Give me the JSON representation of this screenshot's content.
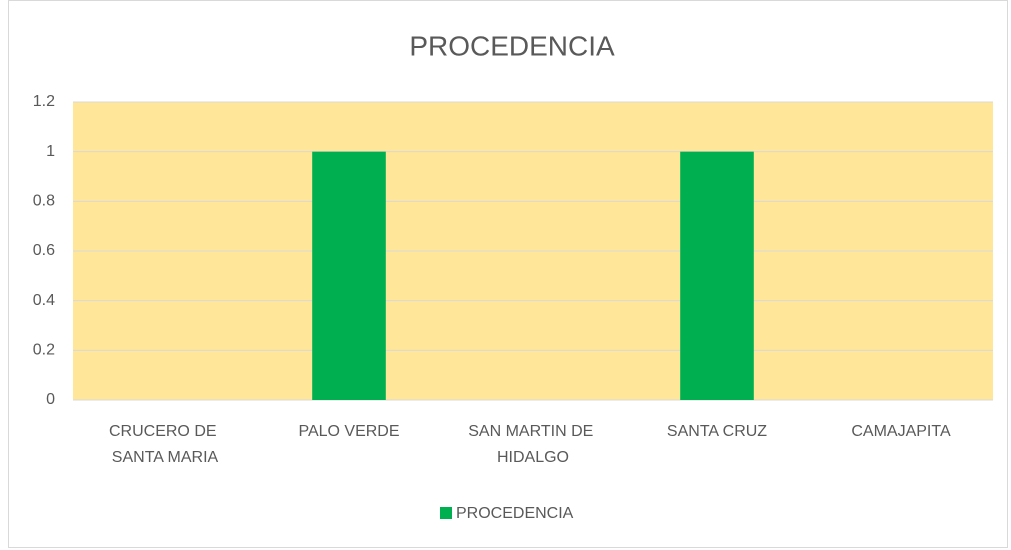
{
  "chart_data": {
    "type": "bar",
    "title": "PROCEDENCIA",
    "categories": [
      "CRUCERO DE SANTA MARIA",
      "PALO VERDE",
      "SAN MARTIN DE HIDALGO",
      "SANTA CRUZ",
      "CAMAJAPITA"
    ],
    "series": [
      {
        "name": "PROCEDENCIA",
        "color": "#00b050",
        "values": [
          0,
          1,
          0,
          1,
          0
        ]
      }
    ],
    "ylim": [
      0,
      1.2
    ],
    "yticks": [
      0,
      0.2,
      0.4,
      0.6,
      0.8,
      1,
      1.2
    ],
    "grid": true,
    "plot_background": "#ffe699",
    "legend": "bottom"
  }
}
